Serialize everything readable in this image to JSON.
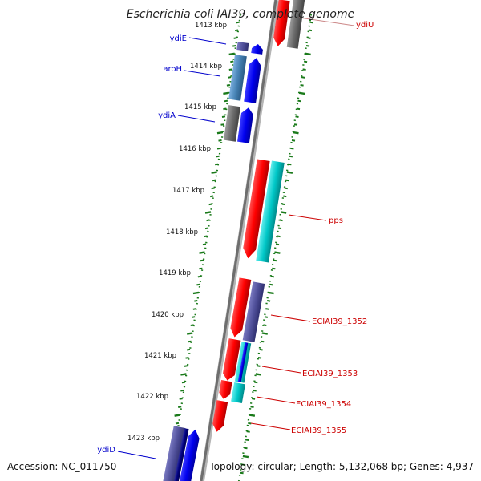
{
  "title": "Escherichia coli IAI39, complete genome",
  "footer": {
    "accession": "Accession: NC_011750",
    "topology": "Topology: circular; Length: 5,132,068 bp; Genes: 4,937"
  },
  "colors": {
    "backbone": "#888888",
    "tick": "#1a7a1a",
    "label_blue": "#0000cc",
    "label_red": "#cc0000",
    "label_gray": "#cc8888",
    "red": "#ff0000",
    "gray": "#6f6f6f",
    "blue": "#0000ee",
    "slate": "#5050a0",
    "steel": "#4682b4",
    "teal": "#00c8c8",
    "navy": "#000080"
  },
  "kbp_labels": [
    "1413 kbp",
    "1414 kbp",
    "1415 kbp",
    "1416 kbp",
    "1417 kbp",
    "1418 kbp",
    "1419 kbp",
    "1420 kbp",
    "1421 kbp",
    "1422 kbp",
    "1423 kbp"
  ],
  "gene_labels": {
    "ydiU": "ydiU",
    "ydiE": "ydiE",
    "aroH": "aroH",
    "ydiA": "ydiA",
    "ydiD": "ydiD",
    "pps": "pps",
    "ecia1352": "ECIAI39_1352",
    "ecia1353": "ECIAI39_1353",
    "ecia1354": "ECIAI39_1354",
    "ecia1355": "ECIAI39_1355"
  }
}
